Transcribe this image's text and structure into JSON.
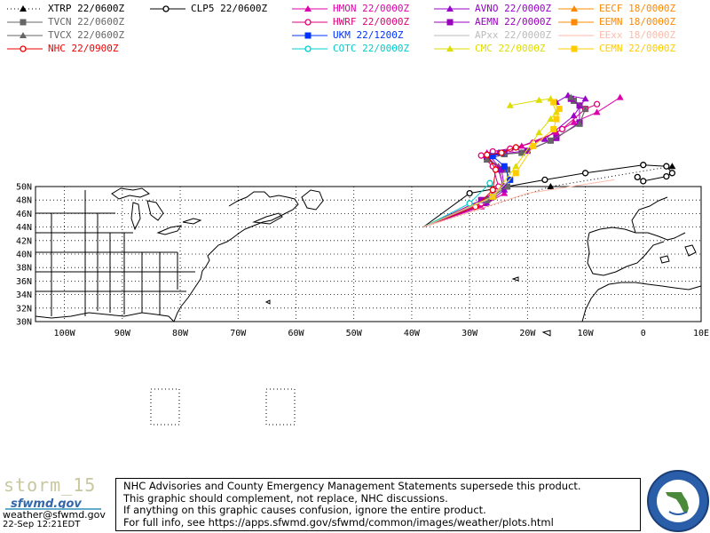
{
  "legend": [
    {
      "label": "XTRP 22/0600Z",
      "color": "#000000",
      "marker": "triangle",
      "dashed": true
    },
    {
      "label": "CLP5 22/0600Z",
      "color": "#000000",
      "marker": "circle"
    },
    {
      "label": "HMON 22/0000Z",
      "color": "#dd00aa",
      "marker": "triangle"
    },
    {
      "label": "AVNO 22/0000Z",
      "color": "#9900cc",
      "marker": "triangle"
    },
    {
      "label": "EECF 18/0000Z",
      "color": "#ff8800",
      "marker": "triangle"
    },
    {
      "label": "TVCN 22/0600Z",
      "color": "#666666",
      "marker": "square"
    },
    {
      "label": "HWRF 22/0000Z",
      "color": "#dd0077",
      "marker": "circle"
    },
    {
      "label": "AEMN 22/0000Z",
      "color": "#9900bb",
      "marker": "square"
    },
    {
      "label": "EEMN 18/0000Z",
      "color": "#ff8800",
      "marker": "square"
    },
    {
      "label": "TVCX 22/0600Z",
      "color": "#666666",
      "marker": "triangle"
    },
    {
      "label": "UKM  22/1200Z",
      "color": "#0033ff",
      "marker": "square"
    },
    {
      "label": "APxx 22/0000Z",
      "color": "#bbbbbb",
      "marker": "none"
    },
    {
      "label": "EExx 18/0000Z",
      "color": "#ffbbaa",
      "marker": "none"
    },
    {
      "label": "NHC 22/0900Z",
      "color": "#ee0000",
      "marker": "circle"
    },
    {
      "label": "COTC 22/0000Z",
      "color": "#00cccc",
      "marker": "circle"
    },
    {
      "label": "CMC  22/0000Z",
      "color": "#dddd00",
      "marker": "triangle"
    },
    {
      "label": "CEMN 22/0000Z",
      "color": "#ffcc00",
      "marker": "square"
    }
  ],
  "map": {
    "lat_labels": [
      "50N",
      "48N",
      "46N",
      "44N",
      "42N",
      "40N",
      "38N",
      "36N",
      "34N",
      "32N",
      "30N"
    ],
    "lon_labels": [
      "100W",
      "90W",
      "80W",
      "70W",
      "60W",
      "50W",
      "40W",
      "30W",
      "20W",
      "10W",
      "0",
      "10E"
    ]
  },
  "tracks": {
    "XTRP": [
      [
        -38,
        44
      ],
      [
        -16,
        50
      ],
      [
        5,
        53
      ]
    ],
    "CLP5": [
      [
        -38,
        44
      ],
      [
        -30,
        49
      ],
      [
        -17,
        51
      ],
      [
        -10,
        52
      ],
      [
        0,
        53.2
      ],
      [
        4,
        53
      ],
      [
        5,
        52
      ],
      [
        4,
        51.5
      ],
      [
        0,
        50.8
      ],
      [
        -1,
        51.4
      ]
    ],
    "HMON": [
      [
        -38,
        44
      ],
      [
        -28,
        47
      ],
      [
        -24,
        49
      ],
      [
        -25,
        53
      ],
      [
        -27,
        55
      ],
      [
        -23,
        55.6
      ],
      [
        -21,
        56
      ],
      [
        -15,
        58
      ],
      [
        -12,
        59.5
      ],
      [
        -8,
        61
      ],
      [
        -4,
        63.2
      ]
    ],
    "AVNO": [
      [
        -38,
        44
      ],
      [
        -27,
        47.5
      ],
      [
        -24,
        49.5
      ],
      [
        -25,
        52.5
      ],
      [
        -27,
        54.5
      ],
      [
        -25,
        55
      ],
      [
        -22,
        55.8
      ],
      [
        -17,
        57
      ],
      [
        -12,
        60.5
      ],
      [
        -10,
        63
      ],
      [
        -13,
        63.5
      ],
      [
        -15,
        62.5
      ]
    ],
    "TVCN": [
      [
        -38,
        44
      ],
      [
        -27,
        48
      ],
      [
        -23.5,
        50
      ],
      [
        -23.5,
        52.5
      ],
      [
        -27,
        54
      ],
      [
        -24,
        54.8
      ],
      [
        -21,
        55
      ],
      [
        -16,
        56.8
      ],
      [
        -11,
        59.3
      ],
      [
        -10,
        61.5
      ],
      [
        -12,
        62.7
      ]
    ],
    "HWRF": [
      [
        -38,
        44
      ],
      [
        -28,
        47.5
      ],
      [
        -25,
        50
      ],
      [
        -26,
        53
      ],
      [
        -28,
        54.6
      ],
      [
        -26,
        55.2
      ],
      [
        -23,
        55.6
      ],
      [
        -19,
        56.5
      ],
      [
        -14,
        58.5
      ],
      [
        -10,
        61.5
      ],
      [
        -8,
        62.2
      ]
    ],
    "AEMN": [
      [
        -38,
        44
      ],
      [
        -28,
        48
      ],
      [
        -24,
        50
      ],
      [
        -24.5,
        52.5
      ],
      [
        -27,
        54.4
      ],
      [
        -24,
        54.9
      ],
      [
        -20,
        55.3
      ],
      [
        -15,
        57.2
      ],
      [
        -11,
        59.5
      ],
      [
        -11,
        62
      ],
      [
        -12.5,
        63
      ]
    ],
    "TVCX": [
      [
        -38,
        44
      ],
      [
        -27,
        48
      ],
      [
        -23.5,
        50
      ],
      [
        -23.5,
        52.5
      ],
      [
        -27,
        54
      ],
      [
        -24,
        54.8
      ],
      [
        -21,
        55
      ],
      [
        -16,
        56.8
      ],
      [
        -11,
        59.3
      ],
      [
        -10,
        61.5
      ],
      [
        -12.5,
        63.2
      ]
    ],
    "UKM": [
      [
        -38,
        44
      ],
      [
        -26,
        48.5
      ],
      [
        -23,
        51
      ],
      [
        -24,
        53
      ],
      [
        -26,
        54.5
      ],
      [
        -24.5,
        55
      ]
    ],
    "NHC": [
      [
        -38,
        44
      ],
      [
        -29,
        47
      ],
      [
        -26,
        49.5
      ],
      [
        -25.5,
        52.5
      ],
      [
        -27,
        54.7
      ],
      [
        -24.5,
        55
      ],
      [
        -22,
        55.8
      ]
    ],
    "COTC": [
      [
        -38,
        44
      ],
      [
        -30,
        47.5
      ],
      [
        -26.5,
        50.5
      ]
    ],
    "CMC": [
      [
        -38,
        44
      ],
      [
        -26,
        48.5
      ],
      [
        -22,
        53
      ],
      [
        -18,
        58
      ],
      [
        -16,
        60
      ],
      [
        -15,
        61
      ],
      [
        -16,
        63
      ],
      [
        -18,
        62.8
      ],
      [
        -23,
        62
      ]
    ],
    "CEMN": [
      [
        -38,
        44
      ],
      [
        -26,
        48.5
      ],
      [
        -22,
        52
      ],
      [
        -19,
        56
      ],
      [
        -15.5,
        58.5
      ],
      [
        -15,
        60
      ],
      [
        -14.5,
        61.5
      ],
      [
        -15.5,
        62.5
      ]
    ],
    "APxx": [
      [
        -38,
        44
      ],
      [
        -27,
        48
      ],
      [
        -23,
        51
      ]
    ],
    "EExx": [
      [
        -38,
        44
      ],
      [
        -20,
        49
      ],
      [
        -5,
        51
      ]
    ]
  },
  "disclaimer": [
    "NHC Advisories and County Emergency Management Statements supersede this product.",
    "This graphic should complement, not replace, NHC discussions.",
    "If anything on this graphic causes confusion, ignore the entire product.",
    "For full info, see   https://apps.sfwmd.gov/sfwmd/common/images/weather/plots.html"
  ],
  "footer": {
    "storm_id": "storm_15",
    "site": "sfwmd.gov",
    "email": "weather@sfwmd.gov",
    "timestamp": "22-Sep 12:21EDT"
  }
}
